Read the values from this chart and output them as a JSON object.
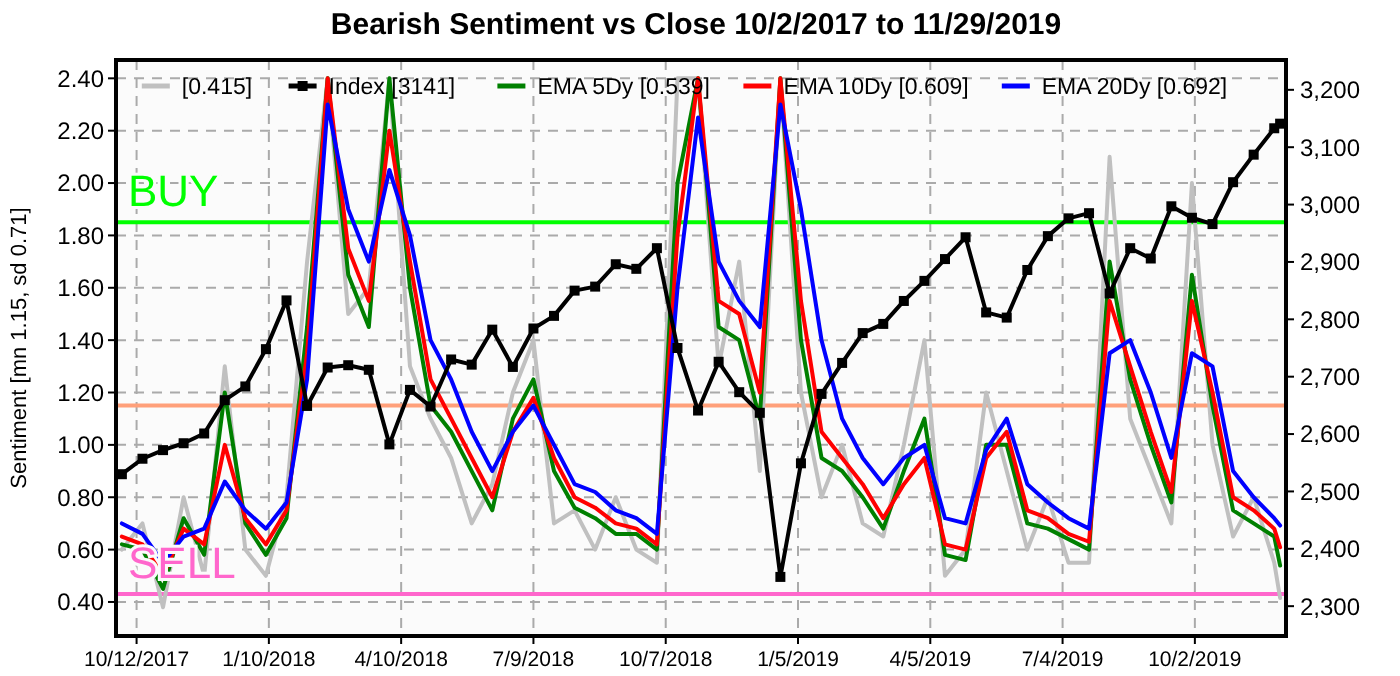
{
  "chart_data": {
    "type": "line",
    "title": "Bearish Sentiment vs Close 10/2/2017 to 11/29/2019",
    "ylabel": "Sentiment [mn 1.15, sd 0.71]",
    "x": [
      "2017-10-02",
      "2017-10-16",
      "2017-10-30",
      "2017-11-13",
      "2017-11-27",
      "2017-12-11",
      "2017-12-25",
      "2018-01-08",
      "2018-01-22",
      "2018-02-05",
      "2018-02-19",
      "2018-03-05",
      "2018-03-19",
      "2018-04-02",
      "2018-04-16",
      "2018-04-30",
      "2018-05-14",
      "2018-05-28",
      "2018-06-11",
      "2018-06-25",
      "2018-07-09",
      "2018-07-23",
      "2018-08-06",
      "2018-08-20",
      "2018-09-03",
      "2018-09-17",
      "2018-10-01",
      "2018-10-15",
      "2018-10-29",
      "2018-11-12",
      "2018-11-26",
      "2018-12-10",
      "2018-12-24",
      "2019-01-07",
      "2019-01-21",
      "2019-02-04",
      "2019-02-18",
      "2019-03-04",
      "2019-03-18",
      "2019-04-01",
      "2019-04-15",
      "2019-04-29",
      "2019-05-13",
      "2019-05-27",
      "2019-06-10",
      "2019-06-24",
      "2019-07-08",
      "2019-07-22",
      "2019-08-05",
      "2019-08-19",
      "2019-09-02",
      "2019-09-16",
      "2019-09-30",
      "2019-10-14",
      "2019-10-28",
      "2019-11-11",
      "2019-11-25",
      "2019-11-29"
    ],
    "series": [
      {
        "name": "[0.415]",
        "color": "#c0c0c0",
        "values": [
          0.6,
          0.7,
          0.38,
          0.8,
          0.5,
          1.3,
          0.6,
          0.5,
          0.8,
          1.7,
          2.4,
          1.5,
          1.6,
          2.4,
          1.3,
          1.1,
          0.95,
          0.7,
          0.85,
          1.2,
          1.4,
          0.7,
          0.75,
          0.6,
          0.8,
          0.6,
          0.55,
          2.4,
          2.4,
          1.3,
          1.7,
          0.9,
          2.4,
          1.2,
          0.8,
          1.0,
          0.7,
          0.65,
          1.0,
          1.4,
          0.5,
          0.6,
          1.2,
          0.9,
          0.6,
          0.8,
          0.55,
          0.55,
          2.1,
          1.1,
          0.9,
          0.7,
          2.0,
          1.0,
          0.65,
          0.8,
          0.55,
          0.415
        ]
      },
      {
        "name": "Index [3141]",
        "color": "#000000",
        "axis": "y2",
        "marker": "square",
        "values": [
          2530,
          2557,
          2572,
          2584,
          2601,
          2659,
          2683,
          2748,
          2833,
          2649,
          2716,
          2720,
          2712,
          2582,
          2677,
          2648,
          2730,
          2721,
          2782,
          2717,
          2784,
          2806,
          2850,
          2857,
          2896,
          2888,
          2924,
          2750,
          2641,
          2726,
          2673,
          2637,
          2351,
          2549,
          2670,
          2724,
          2776,
          2792,
          2832,
          2867,
          2905,
          2943,
          2812,
          2803,
          2886,
          2945,
          2976,
          2985,
          2845,
          2924,
          2906,
          2997,
          2977,
          2966,
          3039,
          3087,
          3133,
          3141
        ]
      },
      {
        "name": "EMA 5Dy [0.539]",
        "color": "#008000",
        "values": [
          0.62,
          0.6,
          0.45,
          0.72,
          0.58,
          1.2,
          0.7,
          0.58,
          0.72,
          1.45,
          2.4,
          1.65,
          1.45,
          2.4,
          1.6,
          1.15,
          1.05,
          0.9,
          0.75,
          1.1,
          1.25,
          0.9,
          0.76,
          0.72,
          0.66,
          0.66,
          0.6,
          2.0,
          2.4,
          1.45,
          1.4,
          1.1,
          2.4,
          1.4,
          0.95,
          0.9,
          0.8,
          0.68,
          0.9,
          1.1,
          0.58,
          0.56,
          1.0,
          1.0,
          0.7,
          0.68,
          0.64,
          0.6,
          1.7,
          1.25,
          1.0,
          0.78,
          1.65,
          1.15,
          0.75,
          0.7,
          0.65,
          0.539
        ]
      },
      {
        "name": "EMA 10Dy [0.609]",
        "color": "#ff0000",
        "values": [
          0.65,
          0.62,
          0.5,
          0.68,
          0.62,
          1.0,
          0.72,
          0.62,
          0.75,
          1.35,
          2.4,
          1.75,
          1.55,
          2.2,
          1.7,
          1.25,
          1.1,
          0.95,
          0.8,
          1.05,
          1.18,
          0.95,
          0.8,
          0.76,
          0.7,
          0.68,
          0.62,
          1.8,
          2.4,
          1.55,
          1.5,
          1.2,
          2.4,
          1.55,
          1.05,
          0.95,
          0.85,
          0.72,
          0.85,
          0.95,
          0.62,
          0.6,
          0.95,
          1.05,
          0.75,
          0.72,
          0.66,
          0.63,
          1.55,
          1.3,
          1.05,
          0.82,
          1.55,
          1.2,
          0.8,
          0.75,
          0.68,
          0.609
        ]
      },
      {
        "name": "EMA 20Dy [0.692]",
        "color": "#0000ff",
        "values": [
          0.7,
          0.66,
          0.55,
          0.65,
          0.68,
          0.86,
          0.75,
          0.68,
          0.78,
          1.25,
          2.3,
          1.9,
          1.7,
          2.05,
          1.8,
          1.4,
          1.25,
          1.05,
          0.9,
          1.05,
          1.15,
          1.0,
          0.85,
          0.82,
          0.75,
          0.72,
          0.66,
          1.6,
          2.25,
          1.7,
          1.55,
          1.45,
          2.3,
          1.9,
          1.4,
          1.1,
          0.95,
          0.85,
          0.95,
          1.0,
          0.72,
          0.7,
          0.98,
          1.1,
          0.85,
          0.78,
          0.72,
          0.68,
          1.35,
          1.4,
          1.2,
          0.95,
          1.35,
          1.3,
          0.9,
          0.8,
          0.72,
          0.692
        ]
      }
    ],
    "ylim": [
      0.27,
      2.47
    ],
    "yticks": [
      {
        "value": 0.4,
        "label": "0.40"
      },
      {
        "value": 0.6,
        "label": "0.60"
      },
      {
        "value": 0.8,
        "label": "0.80"
      },
      {
        "value": 1.0,
        "label": "1.00"
      },
      {
        "value": 1.2,
        "label": "1.20"
      },
      {
        "value": 1.4,
        "label": "1.40"
      },
      {
        "value": 1.6,
        "label": "1.60"
      },
      {
        "value": 1.8,
        "label": "1.80"
      },
      {
        "value": 2.0,
        "label": "2.00"
      },
      {
        "value": 2.2,
        "label": "2.20"
      },
      {
        "value": 2.4,
        "label": "2.40"
      }
    ],
    "y2lim": [
      2248,
      3252
    ],
    "y2ticks": [
      {
        "value": 2300,
        "label": "2,300"
      },
      {
        "value": 2400,
        "label": "2,400"
      },
      {
        "value": 2500,
        "label": "2,500"
      },
      {
        "value": 2600,
        "label": "2,600"
      },
      {
        "value": 2700,
        "label": "2,700"
      },
      {
        "value": 2800,
        "label": "2,800"
      },
      {
        "value": 2900,
        "label": "2,900"
      },
      {
        "value": 3000,
        "label": "3,000"
      },
      {
        "value": 3100,
        "label": "3,100"
      },
      {
        "value": 3200,
        "label": "3,200"
      }
    ],
    "xlim": [
      "2017-09-28",
      "2019-12-03"
    ],
    "xticks": [
      {
        "value": "2017-10-12",
        "label": "10/12/2017"
      },
      {
        "value": "2018-01-10",
        "label": "1/10/2018"
      },
      {
        "value": "2018-04-10",
        "label": "4/10/2018"
      },
      {
        "value": "2018-07-09",
        "label": "7/9/2018"
      },
      {
        "value": "2018-10-07",
        "label": "10/7/2018"
      },
      {
        "value": "2019-01-05",
        "label": "1/5/2019"
      },
      {
        "value": "2019-04-05",
        "label": "4/5/2019"
      },
      {
        "value": "2019-07-04",
        "label": "7/4/2019"
      },
      {
        "value": "2019-10-02",
        "label": "10/2/2019"
      }
    ],
    "ref_lines": [
      {
        "axis": "y",
        "value": 1.85,
        "label": "BUY",
        "color": "#00ff00"
      },
      {
        "axis": "y",
        "value": 1.15,
        "color": "#ffa07a"
      },
      {
        "axis": "y",
        "value": 0.43,
        "label": "SELL",
        "color": "#ff66cc"
      }
    ],
    "grid": true,
    "legend": "top",
    "line_style": "solid"
  }
}
